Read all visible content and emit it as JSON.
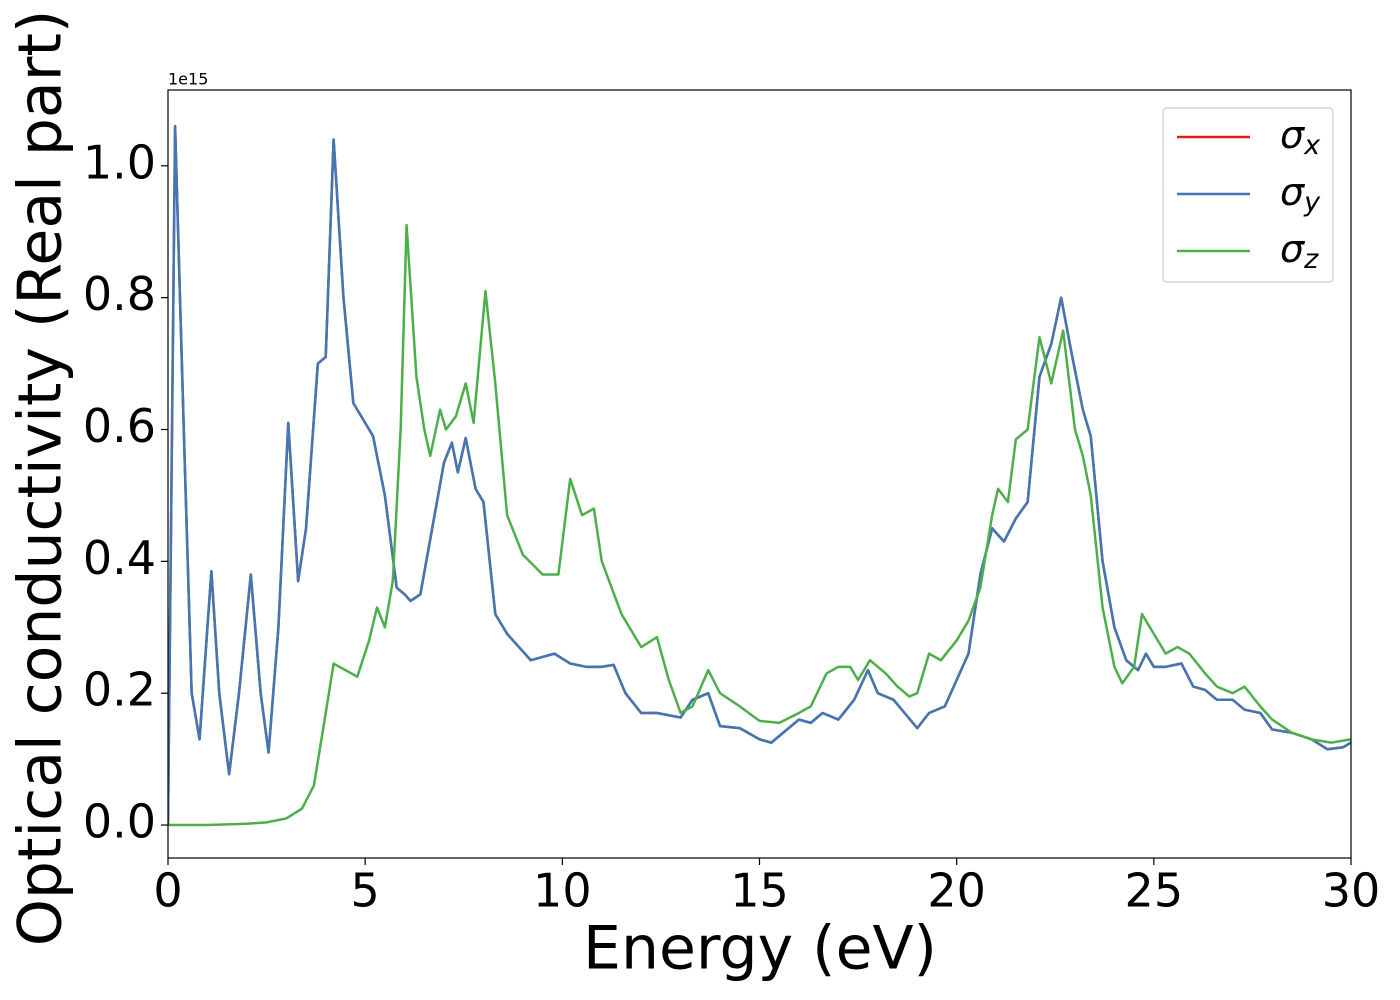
{
  "chart_data": {
    "type": "line",
    "x_label": "Energy (eV)",
    "y_label": "Optical conductivity (Real part)",
    "offset_label": "1e15",
    "xlim": [
      0,
      30
    ],
    "ylim": [
      -0.05,
      1.115
    ],
    "xticks": [
      0,
      5,
      10,
      15,
      20,
      25,
      30
    ],
    "yticks": [
      {
        "value": 0,
        "label": "0.0"
      },
      0.2,
      0.4,
      0.6,
      0.8,
      {
        "value": 1,
        "label": "1.0"
      }
    ],
    "legend": "upper right",
    "series": [
      {
        "name": "σx",
        "color": "#e41a1c",
        "x": [
          0,
          0.18,
          0.4,
          0.6,
          0.8,
          1.0,
          1.1,
          1.3,
          1.55,
          1.8,
          2.1,
          2.35,
          2.55,
          2.8,
          3.05,
          3.3,
          3.5,
          3.8,
          4.0,
          4.2,
          4.45,
          4.7,
          5.0,
          5.2,
          5.5,
          5.8,
          6.0,
          6.15,
          6.4,
          6.7,
          7.0,
          7.2,
          7.35,
          7.55,
          7.8,
          8.0,
          8.3,
          8.6,
          8.9,
          9.2,
          9.5,
          9.8,
          10.2,
          10.6,
          11.0,
          11.3,
          11.6,
          12.0,
          12.4,
          13.0,
          13.3,
          13.7,
          14.0,
          14.5,
          15.0,
          15.3,
          15.6,
          16.0,
          16.3,
          16.6,
          17.0,
          17.4,
          17.75,
          18.0,
          18.4,
          19.0,
          19.3,
          19.7,
          20.0,
          20.3,
          20.6,
          20.9,
          21.2,
          21.5,
          21.8,
          22.1,
          22.4,
          22.65,
          22.9,
          23.2,
          23.4,
          23.7,
          24.0,
          24.3,
          24.6,
          24.8,
          25.0,
          25.3,
          25.7,
          26.0,
          26.3,
          26.6,
          27.0,
          27.3,
          27.7,
          28.0,
          28.5,
          29.0,
          29.4,
          29.8,
          30.0
        ],
        "values": [
          0,
          1.06,
          0.6,
          0.2,
          0.13,
          0.3,
          0.385,
          0.2,
          0.077,
          0.2,
          0.38,
          0.2,
          0.11,
          0.3,
          0.61,
          0.37,
          0.45,
          0.7,
          0.71,
          1.04,
          0.8,
          0.64,
          0.61,
          0.59,
          0.5,
          0.36,
          0.35,
          0.34,
          0.35,
          0.45,
          0.55,
          0.58,
          0.535,
          0.587,
          0.51,
          0.49,
          0.32,
          0.29,
          0.27,
          0.25,
          0.255,
          0.26,
          0.245,
          0.24,
          0.24,
          0.243,
          0.2,
          0.17,
          0.17,
          0.163,
          0.19,
          0.2,
          0.15,
          0.147,
          0.13,
          0.125,
          0.14,
          0.16,
          0.155,
          0.17,
          0.16,
          0.19,
          0.235,
          0.2,
          0.19,
          0.147,
          0.17,
          0.18,
          0.22,
          0.26,
          0.38,
          0.45,
          0.43,
          0.465,
          0.49,
          0.68,
          0.73,
          0.8,
          0.72,
          0.63,
          0.59,
          0.4,
          0.3,
          0.25,
          0.235,
          0.26,
          0.24,
          0.24,
          0.245,
          0.21,
          0.205,
          0.19,
          0.19,
          0.175,
          0.17,
          0.145,
          0.14,
          0.13,
          0.115,
          0.118,
          0.125
        ]
      },
      {
        "name": "σy",
        "color": "#3f78b4",
        "x": [
          0,
          0.18,
          0.4,
          0.6,
          0.8,
          1.0,
          1.1,
          1.3,
          1.55,
          1.8,
          2.1,
          2.35,
          2.55,
          2.8,
          3.05,
          3.3,
          3.5,
          3.8,
          4.0,
          4.2,
          4.45,
          4.7,
          5.0,
          5.2,
          5.5,
          5.8,
          6.0,
          6.15,
          6.4,
          6.7,
          7.0,
          7.2,
          7.35,
          7.55,
          7.8,
          8.0,
          8.3,
          8.6,
          8.9,
          9.2,
          9.5,
          9.8,
          10.2,
          10.6,
          11.0,
          11.3,
          11.6,
          12.0,
          12.4,
          13.0,
          13.3,
          13.7,
          14.0,
          14.5,
          15.0,
          15.3,
          15.6,
          16.0,
          16.3,
          16.6,
          17.0,
          17.4,
          17.75,
          18.0,
          18.4,
          19.0,
          19.3,
          19.7,
          20.0,
          20.3,
          20.6,
          20.9,
          21.2,
          21.5,
          21.8,
          22.1,
          22.4,
          22.65,
          22.9,
          23.2,
          23.4,
          23.7,
          24.0,
          24.3,
          24.6,
          24.8,
          25.0,
          25.3,
          25.7,
          26.0,
          26.3,
          26.6,
          27.0,
          27.3,
          27.7,
          28.0,
          28.5,
          29.0,
          29.4,
          29.8,
          30.0
        ],
        "values": [
          0,
          1.06,
          0.6,
          0.2,
          0.13,
          0.3,
          0.385,
          0.2,
          0.077,
          0.2,
          0.38,
          0.2,
          0.11,
          0.3,
          0.61,
          0.37,
          0.45,
          0.7,
          0.71,
          1.04,
          0.8,
          0.64,
          0.61,
          0.59,
          0.5,
          0.36,
          0.35,
          0.34,
          0.35,
          0.45,
          0.55,
          0.58,
          0.535,
          0.587,
          0.51,
          0.49,
          0.32,
          0.29,
          0.27,
          0.25,
          0.255,
          0.26,
          0.245,
          0.24,
          0.24,
          0.243,
          0.2,
          0.17,
          0.17,
          0.163,
          0.19,
          0.2,
          0.15,
          0.147,
          0.13,
          0.125,
          0.14,
          0.16,
          0.155,
          0.17,
          0.16,
          0.19,
          0.235,
          0.2,
          0.19,
          0.147,
          0.17,
          0.18,
          0.22,
          0.26,
          0.38,
          0.45,
          0.43,
          0.465,
          0.49,
          0.68,
          0.73,
          0.8,
          0.72,
          0.63,
          0.59,
          0.4,
          0.3,
          0.25,
          0.235,
          0.26,
          0.24,
          0.24,
          0.245,
          0.21,
          0.205,
          0.19,
          0.19,
          0.175,
          0.17,
          0.145,
          0.14,
          0.13,
          0.115,
          0.118,
          0.125
        ]
      },
      {
        "name": "σz",
        "color": "#4daf4a",
        "x": [
          0,
          1.0,
          2.0,
          2.5,
          3.0,
          3.4,
          3.7,
          4.0,
          4.2,
          4.5,
          4.8,
          5.1,
          5.3,
          5.5,
          5.7,
          5.9,
          6.05,
          6.3,
          6.5,
          6.65,
          6.9,
          7.05,
          7.3,
          7.55,
          7.75,
          8.05,
          8.3,
          8.6,
          9.0,
          9.5,
          9.9,
          10.2,
          10.5,
          10.8,
          11.0,
          11.5,
          12.0,
          12.4,
          12.7,
          13.0,
          13.3,
          13.7,
          14.0,
          14.5,
          15.0,
          15.5,
          16.0,
          16.3,
          16.7,
          17.0,
          17.3,
          17.5,
          17.8,
          18.2,
          18.5,
          18.8,
          19.0,
          19.3,
          19.6,
          20.0,
          20.3,
          20.6,
          20.9,
          21.05,
          21.3,
          21.5,
          21.8,
          22.1,
          22.4,
          22.7,
          23.0,
          23.2,
          23.4,
          23.7,
          24.0,
          24.2,
          24.5,
          24.7,
          25.0,
          25.3,
          25.6,
          25.9,
          26.3,
          26.6,
          27.0,
          27.3,
          27.7,
          28.0,
          28.5,
          29.0,
          29.5,
          30.0
        ],
        "values": [
          0,
          0,
          0.002,
          0.004,
          0.01,
          0.025,
          0.06,
          0.17,
          0.245,
          0.235,
          0.225,
          0.28,
          0.33,
          0.3,
          0.37,
          0.6,
          0.91,
          0.68,
          0.6,
          0.56,
          0.63,
          0.6,
          0.62,
          0.67,
          0.61,
          0.81,
          0.67,
          0.47,
          0.41,
          0.38,
          0.38,
          0.525,
          0.47,
          0.48,
          0.4,
          0.32,
          0.27,
          0.285,
          0.22,
          0.17,
          0.18,
          0.235,
          0.2,
          0.18,
          0.158,
          0.155,
          0.17,
          0.18,
          0.23,
          0.24,
          0.24,
          0.22,
          0.25,
          0.23,
          0.21,
          0.195,
          0.2,
          0.26,
          0.25,
          0.28,
          0.31,
          0.36,
          0.47,
          0.51,
          0.49,
          0.585,
          0.6,
          0.74,
          0.67,
          0.75,
          0.6,
          0.56,
          0.5,
          0.33,
          0.24,
          0.215,
          0.24,
          0.32,
          0.29,
          0.26,
          0.27,
          0.26,
          0.23,
          0.21,
          0.2,
          0.21,
          0.18,
          0.16,
          0.14,
          0.13,
          0.125,
          0.13
        ]
      }
    ]
  }
}
